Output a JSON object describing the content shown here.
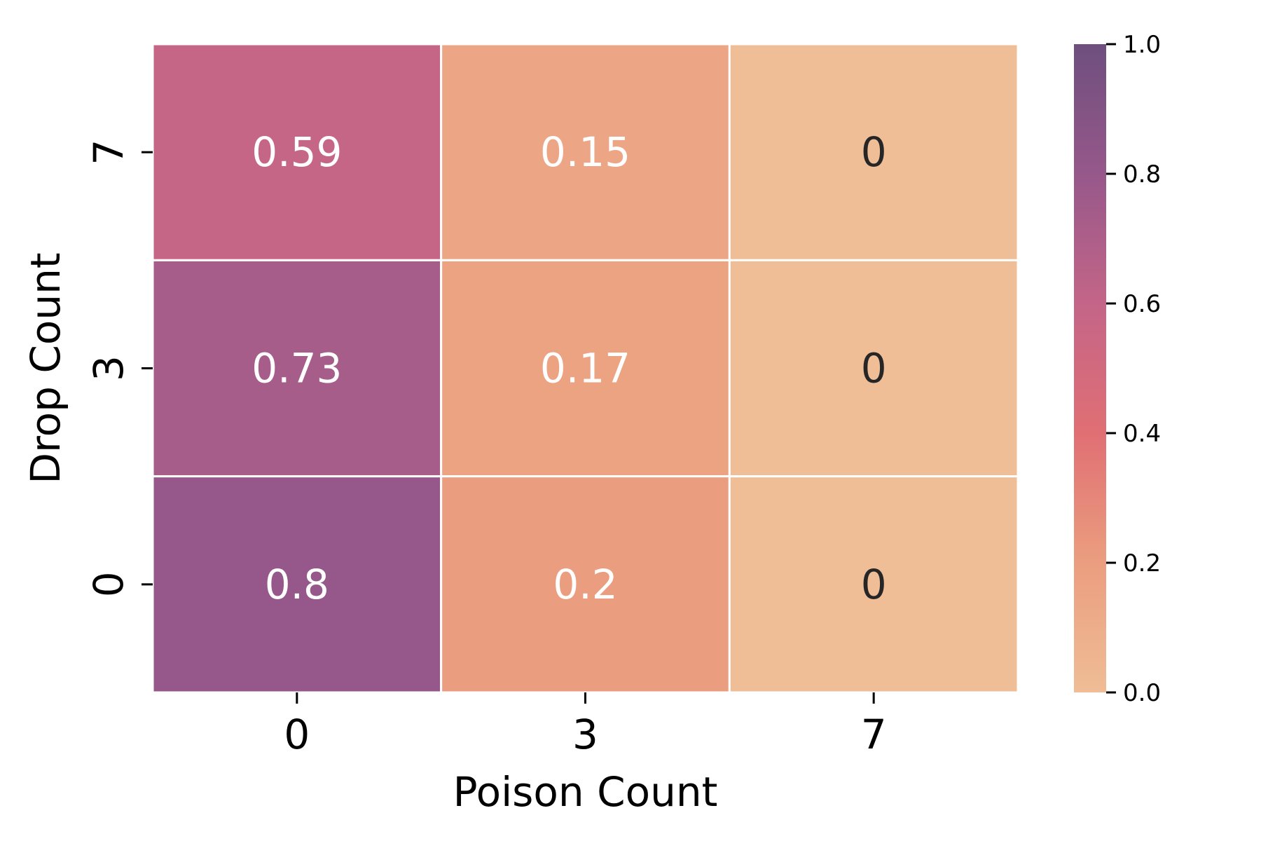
{
  "chart_data": {
    "type": "heatmap",
    "title": "",
    "xlabel": "Poison Count",
    "ylabel": "Drop Count",
    "x_categories": [
      "0",
      "3",
      "7"
    ],
    "y_categories": [
      "7",
      "3",
      "0"
    ],
    "cell_labels": [
      [
        "0.59",
        "0.15",
        "0"
      ],
      [
        "0.73",
        "0.17",
        "0"
      ],
      [
        "0.8",
        "0.2",
        "0"
      ]
    ],
    "values": [
      [
        0.59,
        0.15,
        0.0
      ],
      [
        0.73,
        0.17,
        0.0
      ],
      [
        0.8,
        0.2,
        0.0
      ]
    ],
    "colorbar": {
      "range": [
        0.0,
        1.0
      ],
      "ticks": [
        "0.0",
        "0.2",
        "0.4",
        "0.6",
        "0.8",
        "1.0"
      ],
      "colormap": "flare (orange to purple)",
      "color_stops": [
        "#efbd96",
        "#eb9e7f",
        "#e06f74",
        "#c46588",
        "#96588a",
        "#6e4f7e"
      ]
    },
    "label_colors": {
      "dark_cells": "#ffffff",
      "light_cells": "#262626"
    },
    "grid_line_color": "#ffffff"
  }
}
